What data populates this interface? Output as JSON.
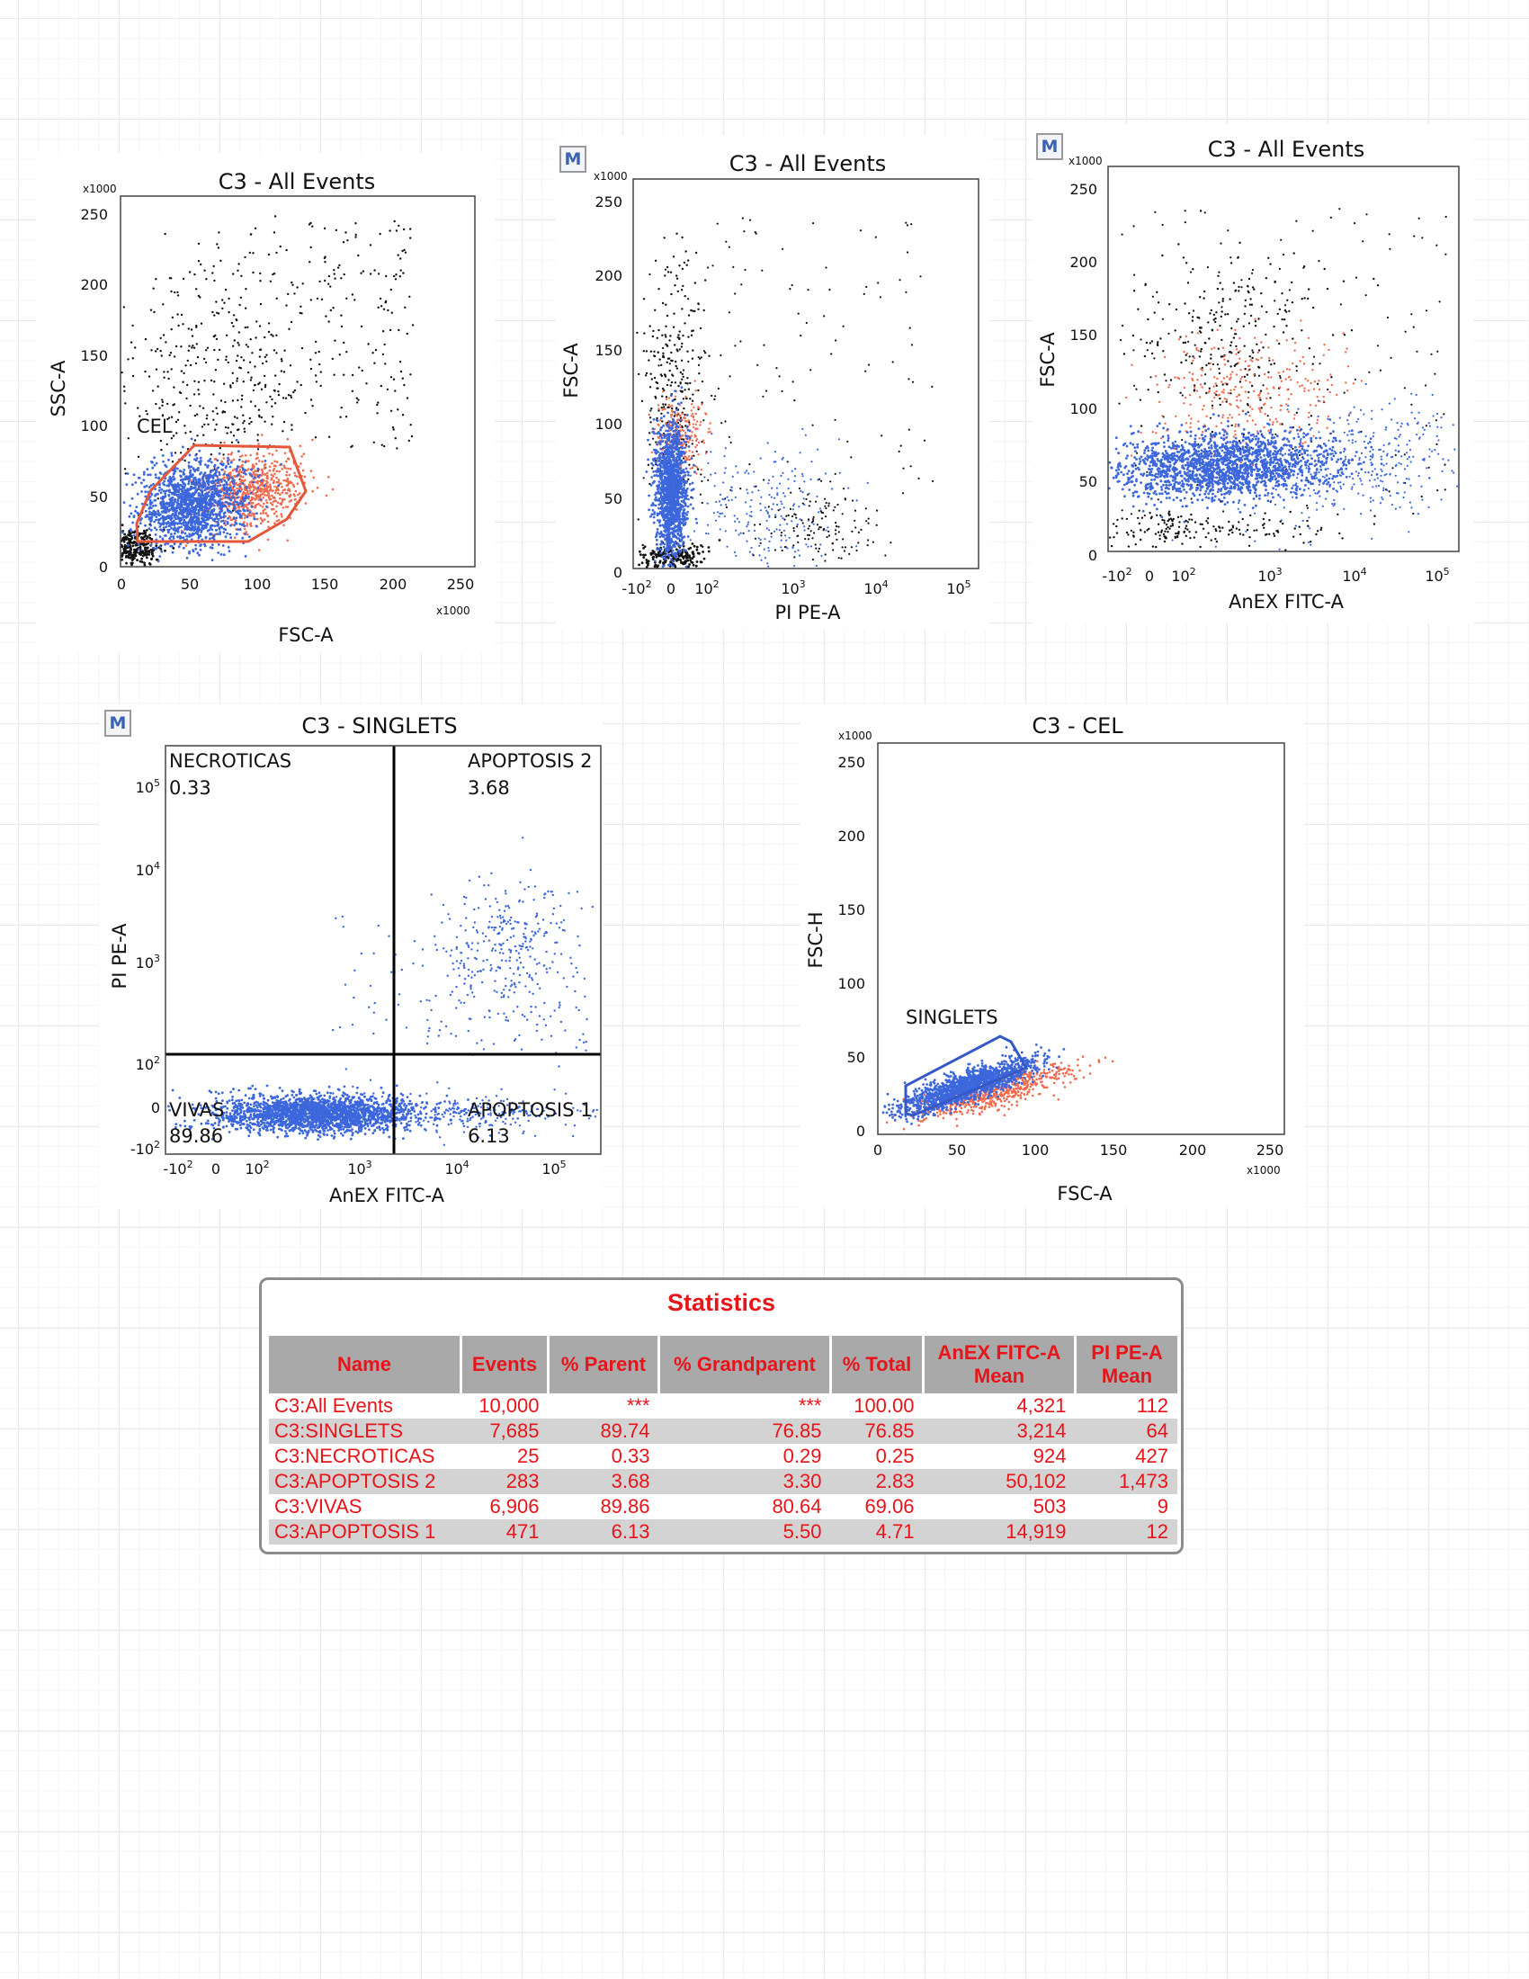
{
  "colors": {
    "black_events": "#111111",
    "blue_events": "#3c67dc",
    "red_events": "#f06b4f",
    "gate_red": "#e4573a",
    "gate_blue": "#3558c6",
    "stats_text": "#e8141a"
  },
  "badge_label": "M",
  "plots": {
    "p1": {
      "title": "C3 - All Events",
      "xlabel": "FSC-A",
      "ylabel": "SSC-A",
      "xmult": "x1000",
      "ymult": "x1000",
      "gate_label": "CEL"
    },
    "p2": {
      "title": "C3 - All Events",
      "xlabel": "PI PE-A",
      "ylabel": "FSC-A",
      "ymult": "x1000"
    },
    "p3": {
      "title": "C3 - All Events",
      "xlabel": "AnEX FITC-A",
      "ylabel": "FSC-A",
      "ymult": "x1000"
    },
    "p4": {
      "title": "C3 - SINGLETS",
      "xlabel": "AnEX FITC-A",
      "ylabel": "PI PE-A",
      "quadrants": {
        "ul": {
          "name": "NECROTICAS",
          "value": "0.33"
        },
        "ur": {
          "name": "APOPTOSIS 2",
          "value": "3.68"
        },
        "ll": {
          "name": "VIVAS",
          "value": "89.86"
        },
        "lr": {
          "name": "APOPTOSIS 1",
          "value": "6.13"
        }
      }
    },
    "p5": {
      "title": "C3 - CEL",
      "xlabel": "FSC-A",
      "ylabel": "FSC-H",
      "xmult": "x1000",
      "ymult": "x1000",
      "gate_label": "SINGLETS"
    }
  },
  "chart_data": [
    {
      "type": "scatter",
      "title": "C3 - All Events",
      "xlabel": "FSC-A",
      "ylabel": "SSC-A",
      "units": "x1000",
      "xlim": [
        0,
        262
      ],
      "ylim": [
        0,
        262
      ],
      "xticks": [
        0,
        50,
        100,
        150,
        200,
        250
      ],
      "yticks": [
        0,
        50,
        100,
        150,
        200,
        250
      ],
      "gates": [
        {
          "name": "CEL",
          "polygon": [
            [
              18,
              38
            ],
            [
              28,
              62
            ],
            [
              60,
              87
            ],
            [
              130,
              86
            ],
            [
              142,
              62
            ],
            [
              128,
              50
            ],
            [
              98,
              18
            ],
            [
              20,
              18
            ]
          ]
        }
      ]
    },
    {
      "type": "scatter",
      "title": "C3 - All Events",
      "xlabel": "PI PE-A",
      "ylabel": "FSC-A",
      "xscale": "biexponential",
      "ylim": [
        0,
        262
      ],
      "xticks": [
        "-10^2",
        "0",
        "10^2",
        "10^3",
        "10^4",
        "10^5"
      ],
      "yticks": [
        0,
        50,
        100,
        150,
        200,
        250
      ]
    },
    {
      "type": "scatter",
      "title": "C3 - All Events",
      "xlabel": "AnEX FITC-A",
      "ylabel": "FSC-A",
      "xscale": "biexponential",
      "ylim": [
        0,
        262
      ],
      "xticks": [
        "-10^2",
        "0",
        "10^2",
        "10^3",
        "10^4",
        "10^5"
      ],
      "yticks": [
        0,
        50,
        100,
        150,
        200,
        250
      ]
    },
    {
      "type": "scatter",
      "title": "C3 - SINGLETS",
      "xlabel": "AnEX FITC-A",
      "ylabel": "PI PE-A",
      "xscale": "biexponential",
      "yscale": "biexponential",
      "xticks": [
        "-10^2",
        "0",
        "10^2",
        "10^3",
        "10^4",
        "10^5"
      ],
      "yticks": [
        "-10^2",
        "0",
        "10^2",
        "10^3",
        "10^4",
        "10^5"
      ],
      "quadrant_percentages": {
        "NECROTICAS": 0.33,
        "APOPTOSIS 2": 3.68,
        "VIVAS": 89.86,
        "APOPTOSIS 1": 6.13
      }
    },
    {
      "type": "scatter",
      "title": "C3 - CEL",
      "xlabel": "FSC-A",
      "ylabel": "FSC-H",
      "units": "x1000",
      "xlim": [
        0,
        262
      ],
      "ylim": [
        0,
        262
      ],
      "xticks": [
        0,
        50,
        100,
        150,
        200,
        250
      ],
      "yticks": [
        0,
        50,
        100,
        150,
        200,
        250
      ],
      "gates": [
        {
          "name": "SINGLETS",
          "polygon": [
            [
              18,
              13
            ],
            [
              18,
              30
            ],
            [
              78,
              65
            ],
            [
              85,
              62
            ],
            [
              95,
              45
            ],
            [
              22,
              12
            ]
          ]
        }
      ]
    },
    {
      "type": "table",
      "title": "Statistics",
      "columns": [
        "Name",
        "Events",
        "% Parent",
        "% Grandparent",
        "% Total",
        "AnEX FITC-A Mean",
        "PI PE-A Mean"
      ],
      "rows": [
        [
          "C3:All Events",
          "10,000",
          "***",
          "***",
          "100.00",
          "4,321",
          "112"
        ],
        [
          "C3:SINGLETS",
          "7,685",
          "89.74",
          "76.85",
          "76.85",
          "3,214",
          "64"
        ],
        [
          "C3:NECROTICAS",
          "25",
          "0.33",
          "0.29",
          "0.25",
          "924",
          "427"
        ],
        [
          "C3:APOPTOSIS 2",
          "283",
          "3.68",
          "3.30",
          "2.83",
          "50,102",
          "1,473"
        ],
        [
          "C3:VIVAS",
          "6,906",
          "89.86",
          "80.64",
          "69.06",
          "503",
          "9"
        ],
        [
          "C3:APOPTOSIS 1",
          "471",
          "6.13",
          "5.50",
          "4.71",
          "14,919",
          "12"
        ]
      ]
    }
  ],
  "stats": {
    "title": "Statistics",
    "headers": {
      "name": "Name",
      "events": "Events",
      "parent": "% Parent",
      "grandparent": "% Grandparent",
      "total": "% Total",
      "anex_l1": "AnEX FITC-A",
      "anex_l2": "Mean",
      "pi_l1": "PI PE-A",
      "pi_l2": "Mean"
    },
    "rows": [
      {
        "name": "C3:All Events",
        "events": "10,000",
        "parent": "***",
        "grandparent": "***",
        "total": "100.00",
        "anex": "4,321",
        "pi": "112"
      },
      {
        "name": "C3:SINGLETS",
        "events": "7,685",
        "parent": "89.74",
        "grandparent": "76.85",
        "total": "76.85",
        "anex": "3,214",
        "pi": "64"
      },
      {
        "name": "C3:NECROTICAS",
        "events": "25",
        "parent": "0.33",
        "grandparent": "0.29",
        "total": "0.25",
        "anex": "924",
        "pi": "427"
      },
      {
        "name": "C3:APOPTOSIS 2",
        "events": "283",
        "parent": "3.68",
        "grandparent": "3.30",
        "total": "2.83",
        "anex": "50,102",
        "pi": "1,473"
      },
      {
        "name": "C3:VIVAS",
        "events": "6,906",
        "parent": "89.86",
        "grandparent": "80.64",
        "total": "69.06",
        "anex": "503",
        "pi": "9"
      },
      {
        "name": "C3:APOPTOSIS 1",
        "events": "471",
        "parent": "6.13",
        "grandparent": "5.50",
        "total": "4.71",
        "anex": "14,919",
        "pi": "12"
      }
    ]
  }
}
